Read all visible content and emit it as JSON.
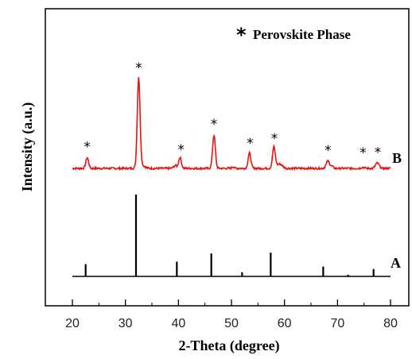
{
  "chart_data": {
    "type": "line",
    "title": "",
    "xlabel": "2-Theta (degree)",
    "ylabel": "Intensity (a.u.)",
    "xlim": [
      15,
      84
    ],
    "xticks": [
      20,
      30,
      40,
      50,
      60,
      70,
      80
    ],
    "y_ticks_shown": false,
    "legend": {
      "marker": "*",
      "label": "Perovskite Phase",
      "placement": "top-right"
    },
    "series": [
      {
        "name": "B",
        "style": "line",
        "color": "#e8140f",
        "peaks_2theta": [
          22.8,
          32.5,
          40.3,
          46.7,
          53.4,
          58.0,
          68.2,
          77.5
        ],
        "peaks_relative_intensity": [
          0.12,
          1.0,
          0.12,
          0.37,
          0.17,
          0.23,
          0.08,
          0.06
        ],
        "marked_peaks": [
          22.8,
          32.5,
          40.5,
          46.7,
          53.5,
          58.1,
          68.2,
          74.8,
          77.6
        ]
      },
      {
        "name": "A",
        "style": "stick",
        "color": "#000000",
        "positions": [
          22.5,
          32.0,
          39.7,
          46.2,
          52.0,
          57.4,
          67.3,
          72.0,
          76.8
        ],
        "relative_intensity": [
          0.15,
          1.0,
          0.18,
          0.28,
          0.05,
          0.29,
          0.12,
          0.02,
          0.09
        ]
      }
    ],
    "curve_labels": [
      "B",
      "A"
    ]
  }
}
